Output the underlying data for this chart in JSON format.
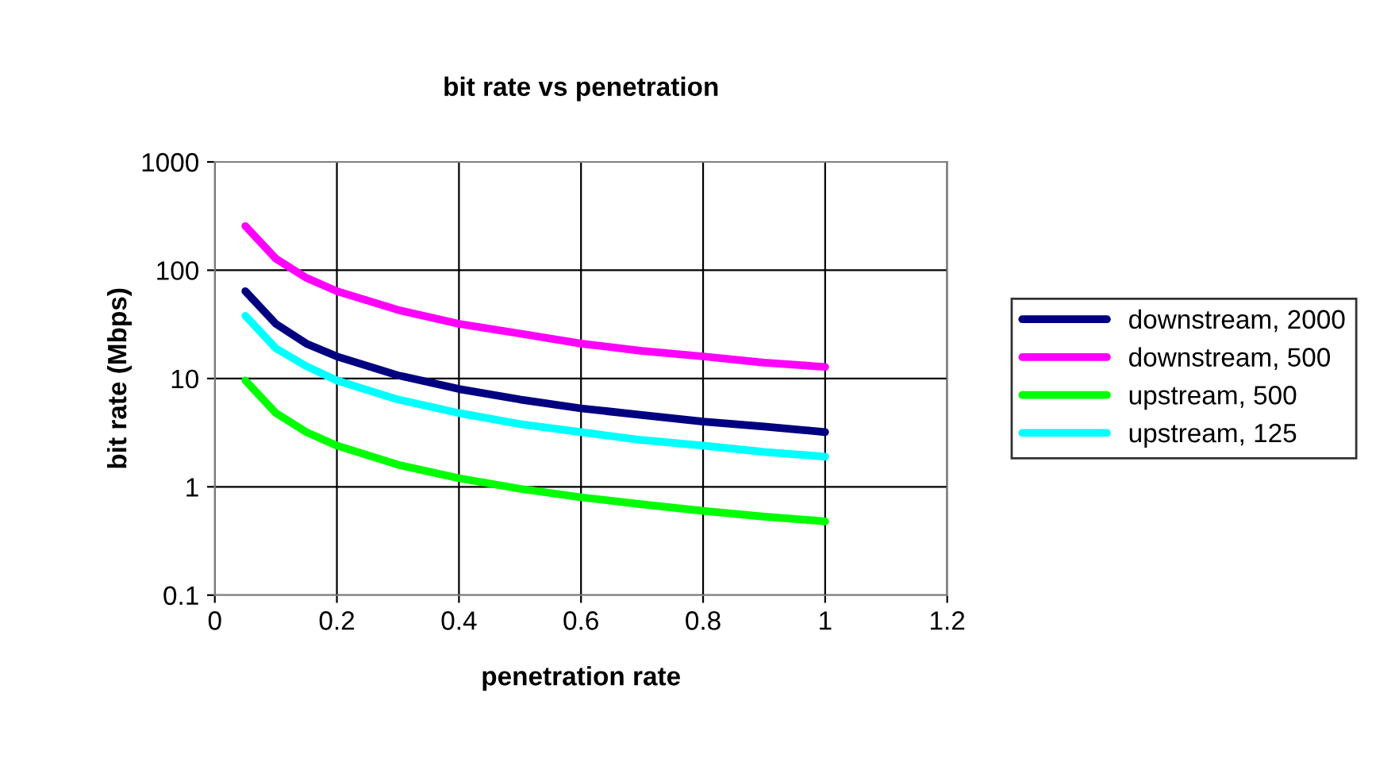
{
  "chart_data": {
    "type": "line",
    "title": "bit rate vs penetration",
    "xlabel": "penetration rate",
    "ylabel": "bit rate (Mbps)",
    "x": [
      0.05,
      0.1,
      0.15,
      0.2,
      0.3,
      0.4,
      0.5,
      0.6,
      0.7,
      0.8,
      0.9,
      1.0
    ],
    "series": [
      {
        "name": "downstream, 2000",
        "color": "#000080",
        "values": [
          64,
          32,
          21,
          16,
          10.7,
          8,
          6.4,
          5.3,
          4.6,
          4,
          3.6,
          3.2
        ]
      },
      {
        "name": "downstream, 500",
        "color": "#ff00ff",
        "values": [
          256,
          128,
          85,
          64,
          43,
          32,
          26,
          21,
          18,
          16,
          14,
          12.8
        ]
      },
      {
        "name": "upstream, 500",
        "color": "#00ff00",
        "values": [
          9.6,
          4.8,
          3.2,
          2.4,
          1.6,
          1.2,
          0.96,
          0.8,
          0.69,
          0.6,
          0.53,
          0.48
        ]
      },
      {
        "name": "upstream, 125",
        "color": "#00ffff",
        "values": [
          38,
          19,
          13,
          9.6,
          6.4,
          4.8,
          3.8,
          3.2,
          2.7,
          2.4,
          2.1,
          1.9
        ]
      }
    ],
    "log": "y",
    "xlim": [
      0,
      1.2
    ],
    "xticks": [
      {
        "value": 0,
        "label": "0"
      },
      0.2,
      0.4,
      0.6,
      0.8,
      1,
      1.2
    ],
    "ylim": [
      0.1,
      1000
    ],
    "yticks": [
      0.1,
      1,
      10,
      100,
      1000
    ],
    "grid": true,
    "legend": "right",
    "marker": "none",
    "line_style": "solid"
  }
}
